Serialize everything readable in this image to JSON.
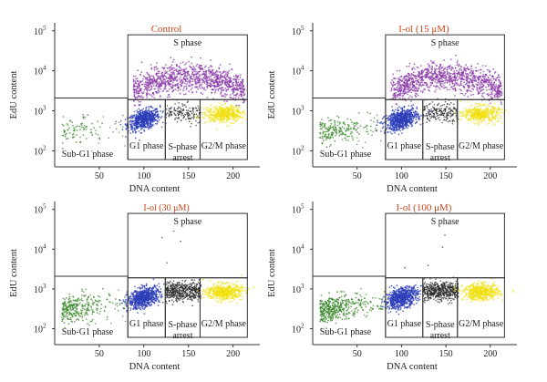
{
  "figure": {
    "colors": {
      "title": "#c8451a",
      "subg1": "#3c8a2e",
      "g1": "#2e3fb8",
      "s": "#8a3aa8",
      "arrest": "#2a2a2a",
      "g2m": "#f0e010",
      "frame": "#333333"
    }
  },
  "chart_data": [
    {
      "type": "scatter",
      "title": "Control",
      "xlabel": "DNA content",
      "ylabel": "EdU content",
      "x_ticks": [
        "50",
        "100",
        "150",
        "200"
      ],
      "y_ticks": [
        "10",
        "10",
        "10",
        "10"
      ],
      "y_tick_exponents": [
        "2",
        "3",
        "4",
        "5"
      ],
      "y_scale": "log",
      "gate_labels": {
        "s": "S phase",
        "subg1": "Sub-G1 phase",
        "g1": "G1 phase",
        "arrest": "S-phase arrest",
        "g2m": "G2/M phase"
      },
      "populations": {
        "subg1": 0.2,
        "g1": 0.9,
        "s": 1.0,
        "arrest": 0.3,
        "g2m": 0.8
      }
    },
    {
      "type": "scatter",
      "title": "I-ol (15 μM)",
      "xlabel": "DNA content",
      "ylabel": "EdU content",
      "x_ticks": [
        "50",
        "100",
        "150",
        "200"
      ],
      "y_ticks": [
        "10",
        "10",
        "10",
        "10"
      ],
      "y_tick_exponents": [
        "2",
        "3",
        "4",
        "5"
      ],
      "y_scale": "log",
      "gate_labels": {
        "s": "S phase",
        "subg1": "Sub-G1 phase",
        "g1": "G1 phase",
        "arrest": "S-phase arrest",
        "g2m": "G2/M phase"
      },
      "populations": {
        "subg1": 0.5,
        "g1": 1.0,
        "s": 1.0,
        "arrest": 0.4,
        "g2m": 0.7
      }
    },
    {
      "type": "scatter",
      "title": "I-ol (30 μM)",
      "xlabel": "DNA content",
      "ylabel": "EdU content",
      "x_ticks": [
        "50",
        "100",
        "150",
        "200"
      ],
      "y_ticks": [
        "10",
        "10",
        "10",
        "10"
      ],
      "y_tick_exponents": [
        "2",
        "3",
        "4",
        "5"
      ],
      "y_scale": "log",
      "gate_labels": {
        "s": "S phase",
        "subg1": "Sub-G1 phase",
        "g1": "G1 phase",
        "arrest": "S-phase arrest",
        "g2m": "G2/M phase"
      },
      "populations": {
        "subg1": 0.7,
        "g1": 1.0,
        "s": 0.0,
        "arrest": 1.0,
        "g2m": 0.9
      }
    },
    {
      "type": "scatter",
      "title": "I-ol (100 μM)",
      "xlabel": "DNA content",
      "ylabel": "EdU content",
      "x_ticks": [
        "50",
        "100",
        "150",
        "200"
      ],
      "y_ticks": [
        "10",
        "10",
        "10",
        "10"
      ],
      "y_tick_exponents": [
        "2",
        "3",
        "4",
        "5"
      ],
      "y_scale": "log",
      "gate_labels": {
        "s": "S phase",
        "subg1": "Sub-G1 phase",
        "g1": "G1 phase",
        "arrest": "S-phase arrest",
        "g2m": "G2/M phase"
      },
      "populations": {
        "subg1": 1.0,
        "g1": 1.0,
        "s": 0.0,
        "arrest": 1.0,
        "g2m": 0.9
      }
    }
  ]
}
